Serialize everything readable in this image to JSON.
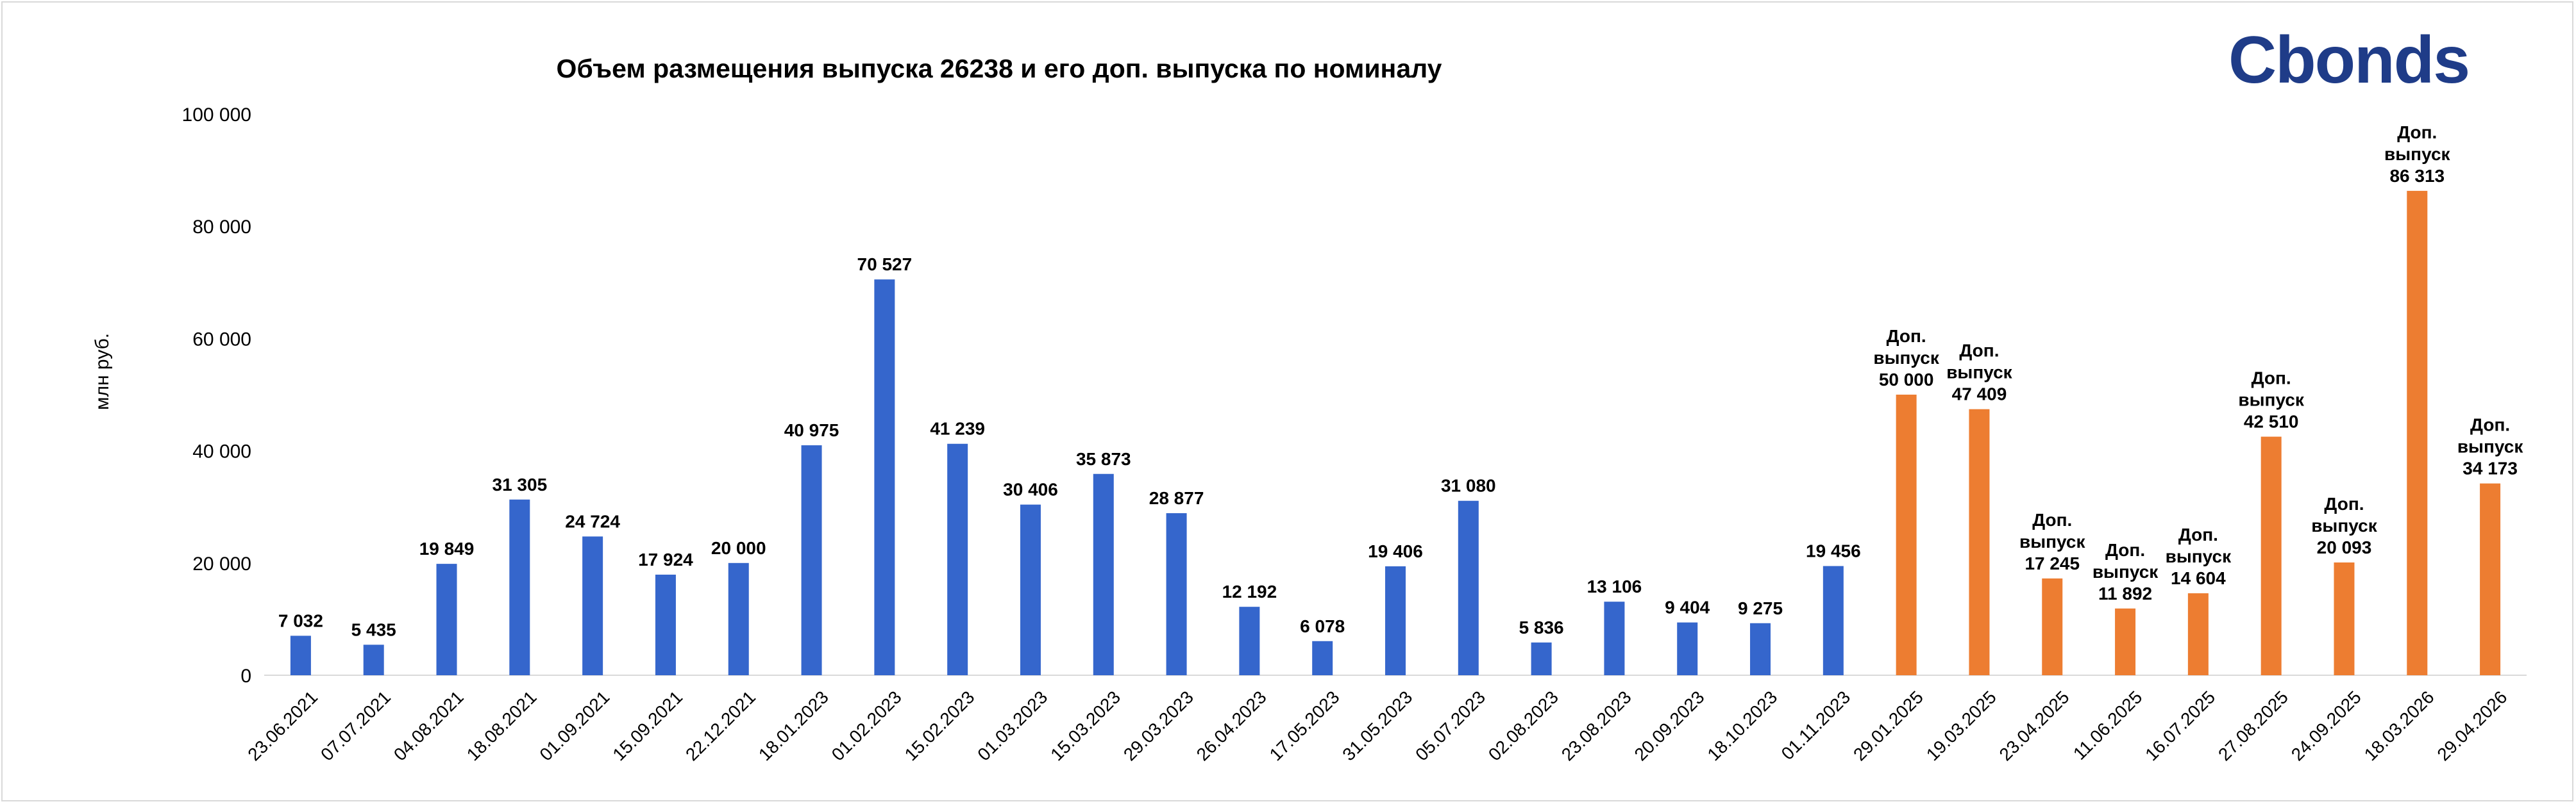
{
  "chart_data": {
    "type": "bar",
    "title": "Объем размещения выпуска 26238 и его доп. выпуска по номиналу",
    "ylabel": "млн руб.",
    "xlabel": "",
    "ylim": [
      0,
      100000
    ],
    "yticks": [
      "0",
      "20 000",
      "40 000",
      "60 000",
      "80 000",
      "100 000"
    ],
    "yticks_values": [
      0,
      20000,
      40000,
      60000,
      80000,
      100000
    ],
    "grid": false,
    "legend": "none",
    "colors": {
      "primary": "#3566cc",
      "additional": "#ed7d31"
    },
    "categories": [
      "23.06.2021",
      "07.07.2021",
      "04.08.2021",
      "18.08.2021",
      "01.09.2021",
      "15.09.2021",
      "22.12.2021",
      "18.01.2023",
      "01.02.2023",
      "15.02.2023",
      "01.03.2023",
      "15.03.2023",
      "29.03.2023",
      "26.04.2023",
      "17.05.2023",
      "31.05.2023",
      "05.07.2023",
      "02.08.2023",
      "23.08.2023",
      "20.09.2023",
      "18.10.2023",
      "01.11.2023",
      "29.01.2025",
      "19.03.2025",
      "23.04.2025",
      "11.06.2025",
      "16.07.2025",
      "27.08.2025",
      "24.09.2025",
      "18.03.2026",
      "29.04.2026"
    ],
    "values": [
      7032,
      5435,
      19849,
      31305,
      24724,
      17924,
      20000,
      40975,
      70527,
      41239,
      30406,
      35873,
      28877,
      12192,
      6078,
      19406,
      31080,
      5836,
      13106,
      9404,
      9275,
      19456,
      50000,
      47409,
      17245,
      11892,
      14604,
      42510,
      20093,
      86313,
      34173
    ],
    "kinds": [
      "primary",
      "primary",
      "primary",
      "primary",
      "primary",
      "primary",
      "primary",
      "primary",
      "primary",
      "primary",
      "primary",
      "primary",
      "primary",
      "primary",
      "primary",
      "primary",
      "primary",
      "primary",
      "primary",
      "primary",
      "primary",
      "primary",
      "additional",
      "additional",
      "additional",
      "additional",
      "additional",
      "additional",
      "additional",
      "additional",
      "additional"
    ],
    "value_labels": [
      "7 032",
      "5 435",
      "19 849",
      "31 305",
      "24 724",
      "17 924",
      "20 000",
      "40 975",
      "70 527",
      "41 239",
      "30 406",
      "35 873",
      "28 877",
      "12 192",
      "6 078",
      "19 406",
      "31 080",
      "5 836",
      "13 106",
      "9 404",
      "9 275",
      "19 456",
      "50 000",
      "47 409",
      "17 245",
      "11 892",
      "14 604",
      "42 510",
      "20 093",
      "86 313",
      "34 173"
    ],
    "additional_prefix": [
      "Доп.",
      "выпуск"
    ]
  },
  "logo": {
    "text": "Cbonds",
    "brand_color": "#1f3c88",
    "accent_color": "#e8632b"
  }
}
